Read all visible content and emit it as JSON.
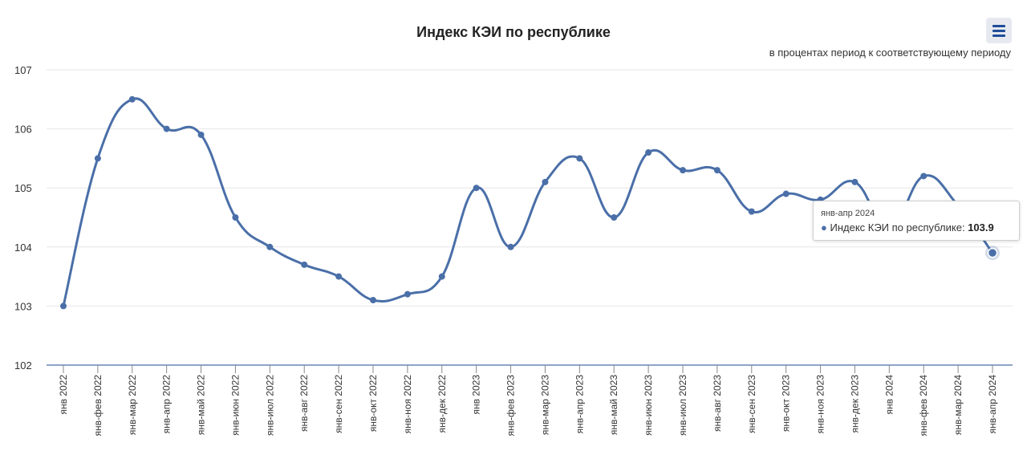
{
  "chart_data": {
    "type": "line",
    "title": "Индекс КЭИ по республике",
    "subtitle": "в процентах период к соответствующему периоду",
    "categories": [
      "янв 2022",
      "янв-фев 2022",
      "янв-мар 2022",
      "янв-апр 2022",
      "янв-май 2022",
      "янв-июн 2022",
      "янв-июл 2022",
      "янв-авг 2022",
      "янв-сен 2022",
      "янв-окт 2022",
      "янв-ноя 2022",
      "янв-дек 2022",
      "янв 2023",
      "янв-фев 2023",
      "янв-мар 2023",
      "янв-апр 2023",
      "янв-май 2023",
      "янв-июн 2023",
      "янв-июл 2023",
      "янв-авг 2023",
      "янв-сен 2023",
      "янв-окт 2023",
      "янв-ноя 2023",
      "янв-дек 2023",
      "янв 2024",
      "янв-фев 2024",
      "янв-мар 2024",
      "янв-апр 2024"
    ],
    "series": [
      {
        "name": "Индекс КЭИ по республике",
        "values": [
          103.0,
          105.5,
          106.5,
          106.0,
          105.9,
          104.5,
          104.0,
          103.7,
          103.5,
          103.1,
          103.2,
          103.5,
          105.0,
          104.0,
          105.1,
          105.5,
          104.5,
          105.6,
          105.3,
          105.3,
          104.6,
          104.9,
          104.8,
          105.1,
          104.3,
          105.2,
          104.7,
          103.9
        ]
      }
    ],
    "ylim": [
      102,
      107
    ],
    "yticks": [
      102,
      103,
      104,
      105,
      106,
      107
    ],
    "grid": true,
    "legend": "none",
    "colors": {
      "line": "#4a6fa8",
      "grid": "#e6e6e6",
      "axis": "#4a6fa8"
    },
    "tooltip": {
      "header": "янв-апр 2024",
      "series_label": "Индекс КЭИ по республике:",
      "value": "103.9"
    }
  },
  "toolbar": {
    "menu_icon": "hamburger-menu-icon"
  }
}
